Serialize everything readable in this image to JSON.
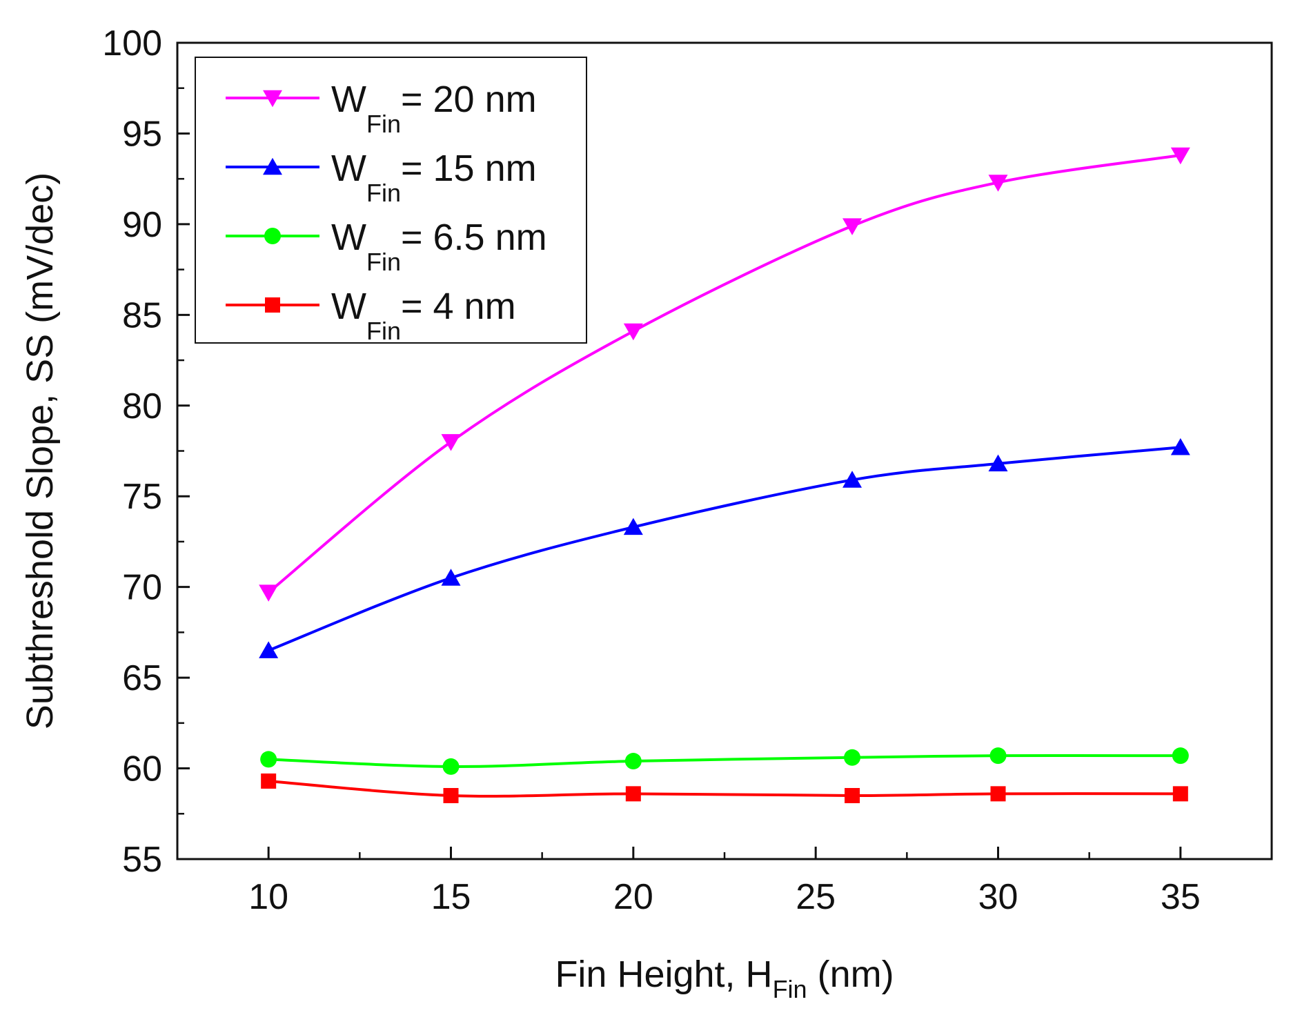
{
  "chart_data": {
    "type": "line",
    "xlabel_main": "Fin Height, H",
    "xlabel_sub": "Fin",
    "xlabel_unit": " (nm)",
    "ylabel": "Subthreshold Slope, SS (mV/dec)",
    "xlim": [
      7.5,
      37.5
    ],
    "ylim": [
      55,
      100
    ],
    "x_ticks": [
      10,
      15,
      20,
      25,
      30,
      35
    ],
    "y_ticks": [
      55,
      60,
      65,
      70,
      75,
      80,
      85,
      90,
      95,
      100
    ],
    "x_minor_ticks": [
      12.5,
      17.5,
      22.5,
      27.5,
      32.5
    ],
    "y_minor_ticks": [
      57.5,
      62.5,
      67.5,
      72.5,
      77.5,
      82.5,
      87.5,
      92.5,
      97.5
    ],
    "grid": false,
    "legend_position": "top-left",
    "series": [
      {
        "label_main": "W",
        "label_sub": "Fin",
        "label_rest": "= 20 nm",
        "color": "#ff00ff",
        "marker": "triangle-down",
        "x": [
          10,
          15,
          20,
          26,
          30,
          35
        ],
        "y": [
          69.7,
          78.0,
          84.1,
          89.9,
          92.3,
          93.8
        ]
      },
      {
        "label_main": "W",
        "label_sub": "Fin",
        "label_rest": "= 15 nm",
        "color": "#0000ff",
        "marker": "triangle-up",
        "x": [
          10,
          15,
          20,
          26,
          30,
          35
        ],
        "y": [
          66.5,
          70.5,
          73.3,
          75.9,
          76.8,
          77.7
        ]
      },
      {
        "label_main": "W",
        "label_sub": "Fin",
        "label_rest": "= 6.5 nm",
        "color": "#00ff00",
        "marker": "circle",
        "x": [
          10,
          15,
          20,
          26,
          30,
          35
        ],
        "y": [
          60.5,
          60.1,
          60.4,
          60.6,
          60.7,
          60.7
        ]
      },
      {
        "label_main": "W",
        "label_sub": "Fin",
        "label_rest": "= 4 nm",
        "color": "#ff0000",
        "marker": "square",
        "x": [
          10,
          15,
          20,
          26,
          30,
          35
        ],
        "y": [
          59.3,
          58.5,
          58.6,
          58.5,
          58.6,
          58.6
        ]
      }
    ]
  }
}
